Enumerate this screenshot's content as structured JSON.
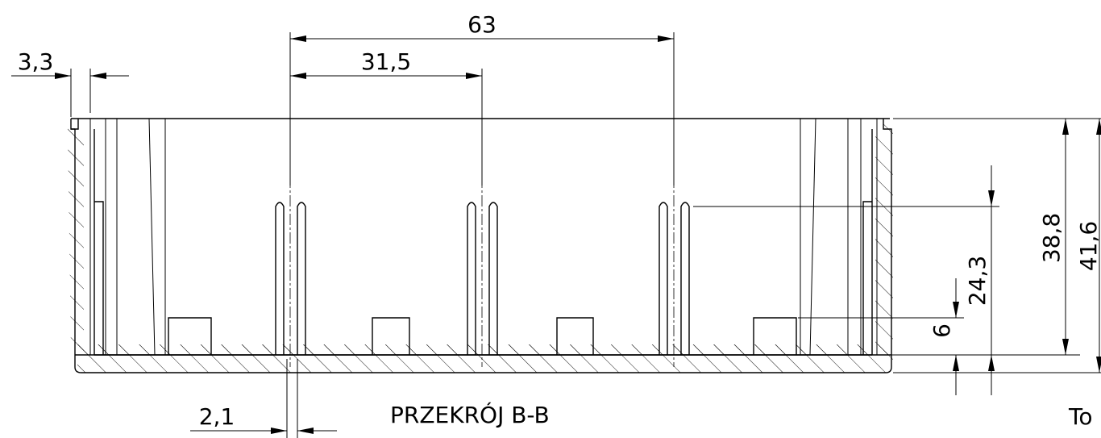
{
  "dimensions": {
    "d_63": "63",
    "d_31_5": "31,5",
    "d_3_3": "3,3",
    "d_2_1": "2,1",
    "d_38_8": "38,8",
    "d_41_6": "41,6",
    "d_24_3": "24,3",
    "d_6": "6"
  },
  "section_label": "PRZEKRÓJ B-B",
  "partial_text": "To"
}
